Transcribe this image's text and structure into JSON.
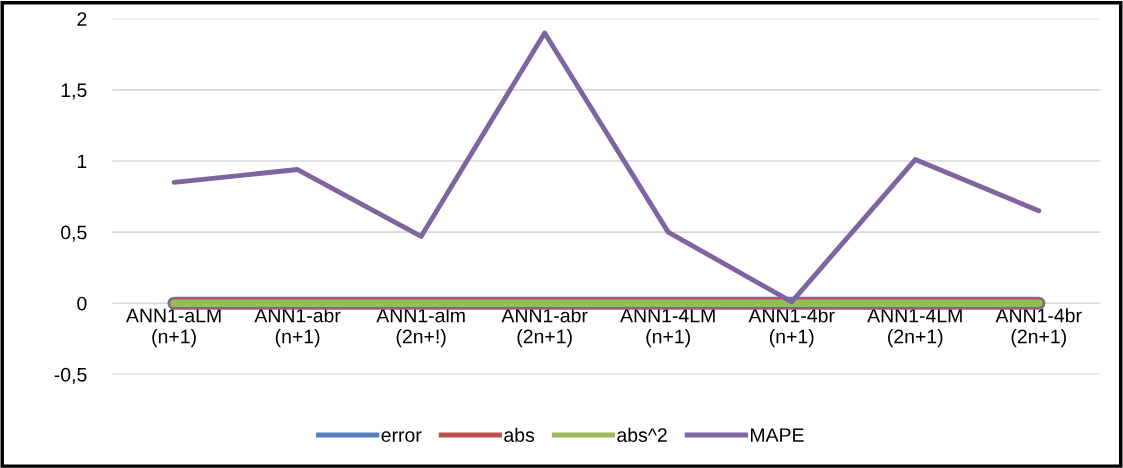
{
  "chart_data": {
    "type": "line",
    "categories": [
      "ANN1-aLM\n(n+1)",
      "ANN1-abr\n(n+1)",
      "ANN1-alm\n(2n+!)",
      "ANN1-abr\n(2n+1)",
      "ANN1-4LM\n(n+1)",
      "ANN1-4br\n(n+1)",
      "ANN1-4LM\n(2n+1)",
      "ANN1-4br\n(2n+1)"
    ],
    "series": [
      {
        "name": "error",
        "color": "#4f81bd",
        "values": [
          0,
          0,
          0,
          0,
          0,
          0,
          0,
          0
        ]
      },
      {
        "name": "abs",
        "color": "#c0504d",
        "values": [
          0,
          0,
          0,
          0,
          0,
          0,
          0,
          0
        ]
      },
      {
        "name": "abs^2",
        "color": "#9bbb59",
        "values": [
          0,
          0,
          0,
          0,
          0,
          0,
          0,
          0
        ]
      },
      {
        "name": "MAPE",
        "color": "#8064a2",
        "values": [
          0.85,
          0.94,
          0.47,
          1.9,
          0.5,
          0.01,
          1.01,
          0.65
        ]
      }
    ],
    "ylim": [
      -0.5,
      2
    ],
    "yticks": [
      {
        "value": -0.5,
        "label": "-0,5"
      },
      0,
      {
        "value": 0.5,
        "label": "0,5"
      },
      1,
      {
        "value": 1.5,
        "label": "1,5"
      },
      2
    ],
    "grid": "y",
    "legend": "bottom",
    "marker": "none",
    "line_style": "solid"
  }
}
